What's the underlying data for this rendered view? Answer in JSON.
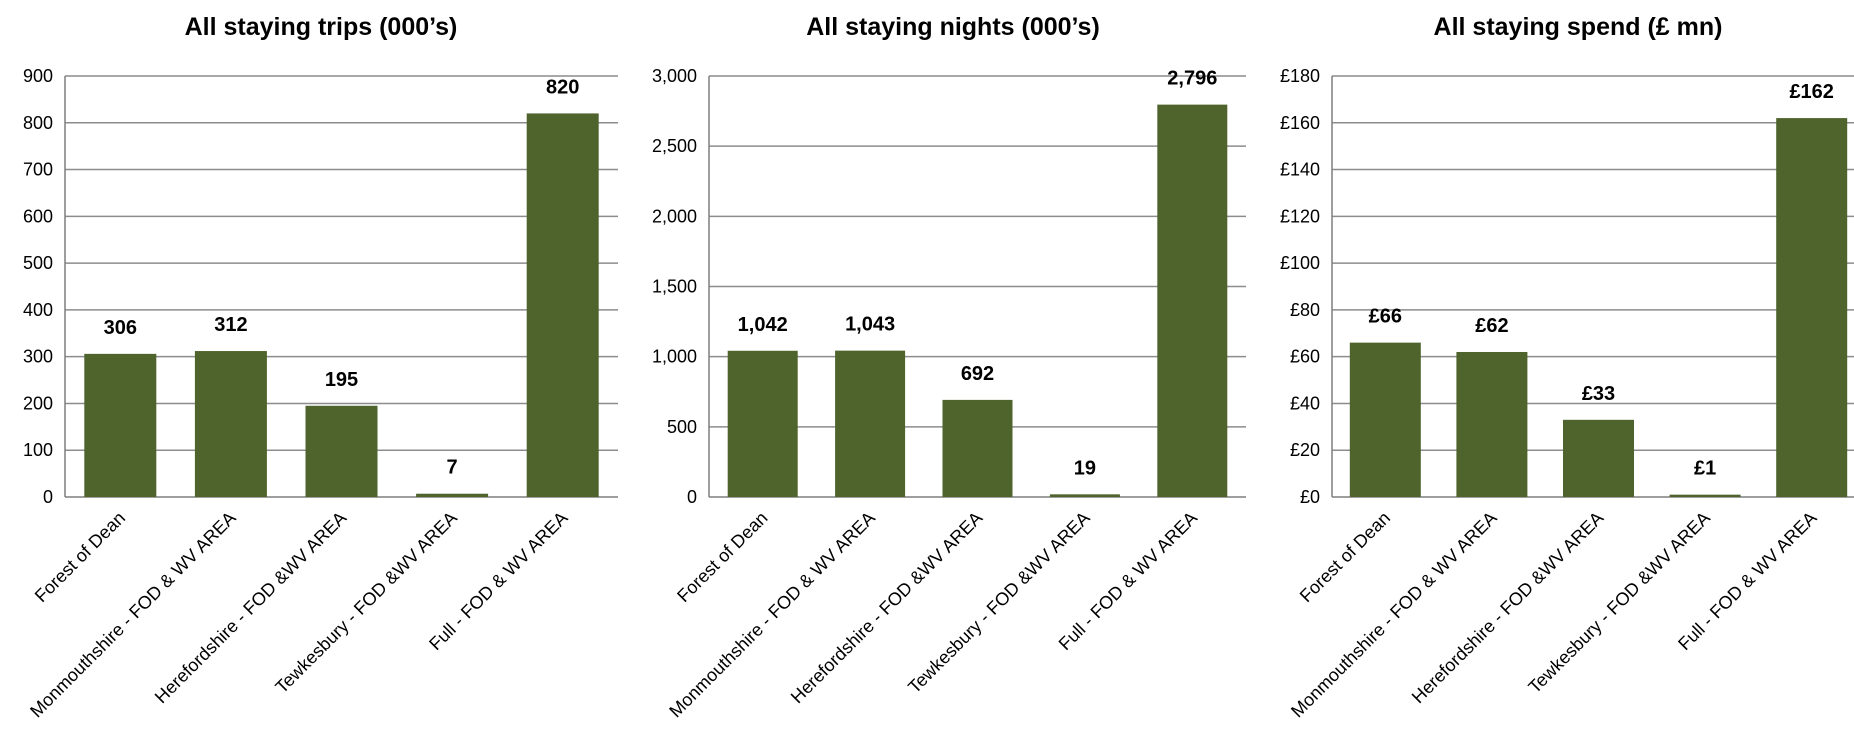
{
  "colors": {
    "bar": "#4f632c",
    "grid": "#8c8c8c",
    "text": "#000000"
  },
  "chart_data": [
    {
      "type": "bar",
      "title": "All staying trips (000’s)",
      "categories": [
        "Forest of Dean",
        "Monmouthshire - FOD & WV AREA",
        "Herefordshire - FOD &WV AREA",
        "Tewkesbury - FOD &WV AREA",
        "Full - FOD & WV AREA"
      ],
      "values": [
        306,
        312,
        195,
        7,
        820
      ],
      "data_labels": [
        "306",
        "312",
        "195",
        "7",
        "820"
      ],
      "ylim": [
        0,
        900
      ],
      "ticks": [
        0,
        100,
        200,
        300,
        400,
        500,
        600,
        700,
        800,
        900
      ],
      "tick_labels": [
        "0",
        "100",
        "200",
        "300",
        "400",
        "500",
        "600",
        "700",
        "800",
        "900"
      ],
      "grid": true,
      "legend": "none"
    },
    {
      "type": "bar",
      "title": "All staying nights (000’s)",
      "categories": [
        "Forest of Dean",
        "Monmouthshire - FOD & WV AREA",
        "Herefordshire - FOD &WV AREA",
        "Tewkesbury - FOD &WV AREA",
        "Full - FOD & WV AREA"
      ],
      "values": [
        1042,
        1043,
        692,
        19,
        2796
      ],
      "data_labels": [
        "1,042",
        "1,043",
        "692",
        "19",
        "2,796"
      ],
      "ylim": [
        0,
        3000
      ],
      "ticks": [
        0,
        500,
        1000,
        1500,
        2000,
        2500,
        3000
      ],
      "tick_labels": [
        "0",
        "500",
        "1,000",
        "1,500",
        "2,000",
        "2,500",
        "3,000"
      ],
      "grid": true,
      "legend": "none"
    },
    {
      "type": "bar",
      "title": "All staying spend (£ mn)",
      "categories": [
        "Forest of Dean",
        "Monmouthshire - FOD & WV AREA",
        "Herefordshire - FOD &WV AREA",
        "Tewkesbury - FOD &WV AREA",
        "Full - FOD & WV AREA"
      ],
      "values": [
        66,
        62,
        33,
        1,
        162
      ],
      "data_labels": [
        "£66",
        "£62",
        "£33",
        "£1",
        "£162"
      ],
      "ylim": [
        0,
        180
      ],
      "ticks": [
        0,
        20,
        40,
        60,
        80,
        100,
        120,
        140,
        160,
        180
      ],
      "tick_labels": [
        "£0",
        "£20",
        "£40",
        "£60",
        "£80",
        "£100",
        "£120",
        "£140",
        "£160",
        "£180"
      ],
      "grid": true,
      "legend": "none"
    }
  ]
}
